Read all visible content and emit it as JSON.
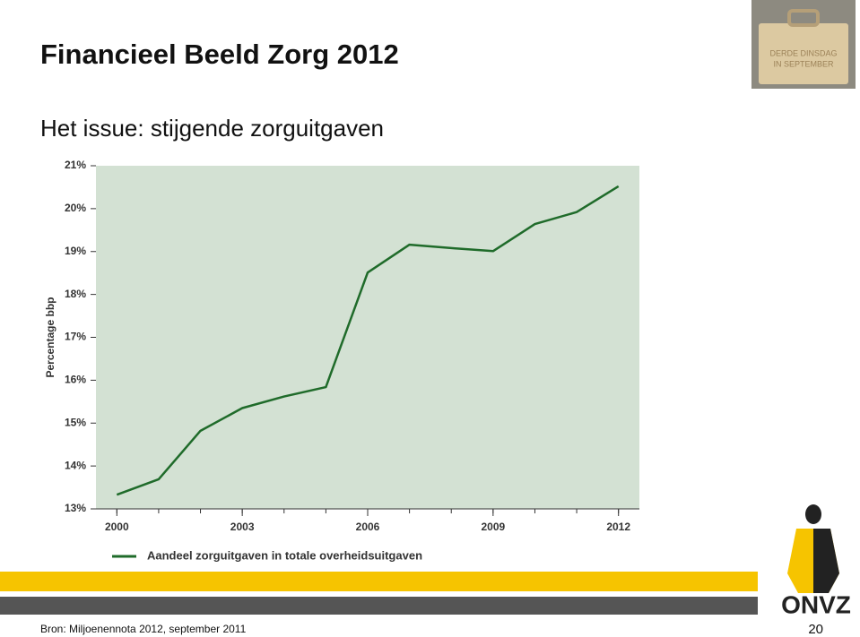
{
  "header": {
    "title": "Financieel Beeld Zorg 2012",
    "subtitle": "Het issue: stijgende zorguitgaven",
    "image_text": [
      "DERDE DINSDAG",
      "IN SEPTEMBER"
    ]
  },
  "chart_data": {
    "type": "line",
    "y_label": "Percentage bbp",
    "x": [
      2000,
      2001,
      2002,
      2003,
      2004,
      2005,
      2006,
      2007,
      2008,
      2009,
      2010,
      2011,
      2012
    ],
    "series": [
      {
        "name": "Aandeel zorguitgaven in totale overheidsuitgaven",
        "color": "#1f6b2a",
        "values": [
          13.33,
          13.69,
          14.82,
          15.35,
          15.62,
          15.84,
          18.51,
          19.16,
          19.08,
          19.01,
          19.64,
          19.92,
          20.52
        ]
      }
    ],
    "xlim": [
      1999.5,
      2012.5
    ],
    "xticks": [
      2000,
      2003,
      2006,
      2009,
      2012
    ],
    "ylim": [
      13,
      21
    ],
    "yticks": [
      {
        "value": 13,
        "label": "13%"
      },
      {
        "value": 14,
        "label": "14%"
      },
      {
        "value": 15,
        "label": "15%"
      },
      {
        "value": 16,
        "label": "16%"
      },
      {
        "value": 17,
        "label": "17%"
      },
      {
        "value": 18,
        "label": "18%"
      },
      {
        "value": 19,
        "label": "19%"
      },
      {
        "value": 20,
        "label": "20%"
      },
      {
        "value": 21,
        "label": "21%"
      }
    ],
    "plot_background": "#d3e1d3",
    "legend": "bottom"
  },
  "footer": {
    "source": "Bron: Miljoenennota 2012, september 2011",
    "page": "20",
    "logo": "ONVZ"
  }
}
